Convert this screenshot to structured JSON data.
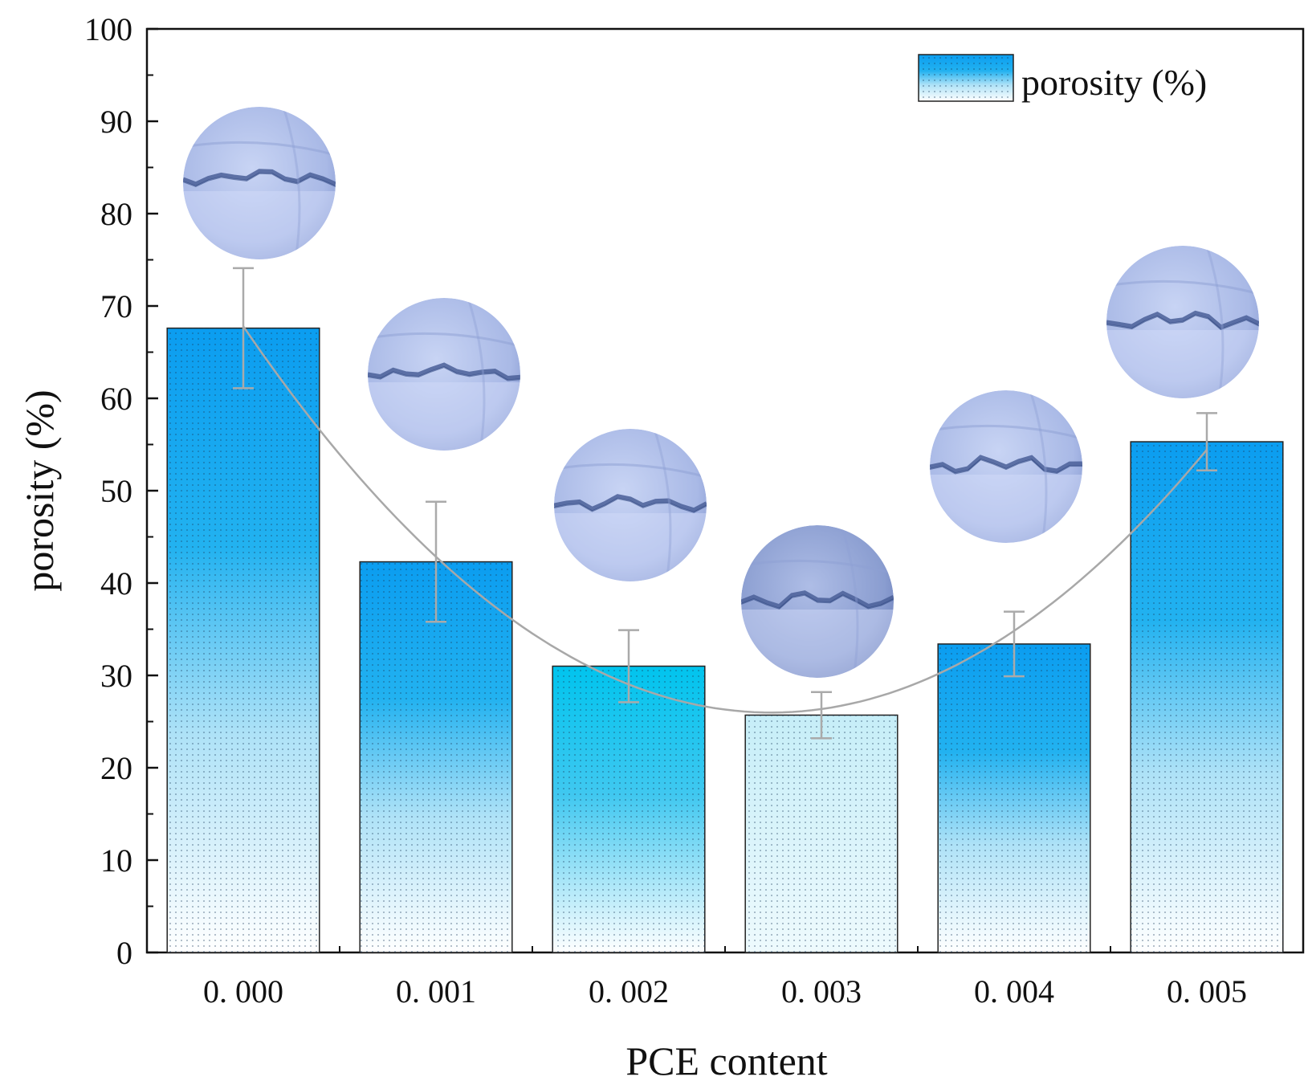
{
  "chart_data": {
    "type": "bar",
    "title": "",
    "xlabel": "PCE content",
    "ylabel": "porosity (%)",
    "ylim": [
      0,
      100
    ],
    "yticks": [
      "0",
      "10",
      "20",
      "30",
      "40",
      "50",
      "60",
      "70",
      "80",
      "90",
      "100"
    ],
    "categories": [
      "0. 000",
      "0. 001",
      "0. 002",
      "0. 003",
      "0. 004",
      "0. 005"
    ],
    "series": [
      {
        "name": "porosity (%)",
        "values": [
          67.6,
          42.3,
          31.0,
          25.7,
          33.4,
          55.3
        ],
        "error_low": [
          61.1,
          35.8,
          27.1,
          23.2,
          29.9,
          52.2
        ],
        "error_high": [
          74.1,
          48.8,
          34.9,
          28.2,
          36.9,
          58.4
        ]
      }
    ],
    "trend_curve": "quadratic fit",
    "legend": {
      "position": "top-right",
      "label": "porosity (%)"
    },
    "inset_images": [
      "sample-0.000-micrograph",
      "sample-0.001-micrograph",
      "sample-0.002-micrograph",
      "sample-0.003-micrograph",
      "sample-0.004-micrograph",
      "sample-0.005-micrograph"
    ],
    "grid": false
  },
  "colors": {
    "bar_top": "#0b9df0",
    "bar_bottom": "#ffffff",
    "error": "#aaaaaa",
    "curve": "#a8a8a8",
    "axis": "#111111",
    "micrograph": "#b8c6ec",
    "micrograph_dark": "#4a5f98"
  }
}
